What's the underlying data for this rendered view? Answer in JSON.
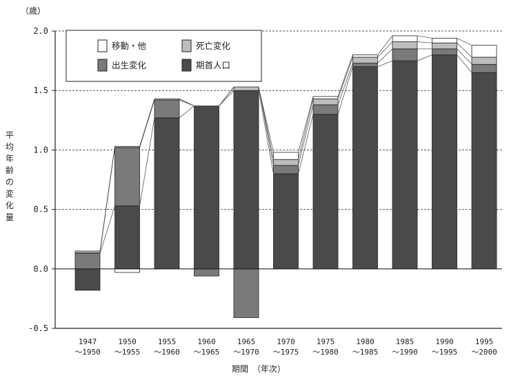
{
  "chart_data": {
    "type": "bar",
    "stacked": true,
    "unit_label": "（歳）",
    "ylabel": "平均年齢の変化量",
    "xlabel": "期間　（年次）",
    "ylim": [
      -0.5,
      2.0
    ],
    "yticks": [
      "2.0",
      "1.5",
      "1.0",
      "0.5",
      "0.0",
      "-0.5"
    ],
    "ytick_values": [
      2.0,
      1.5,
      1.0,
      0.5,
      0.0,
      -0.5
    ],
    "grid": true,
    "legend_position": "top-left",
    "categories": [
      [
        "1947",
        "～1950"
      ],
      [
        "1950",
        "～1955"
      ],
      [
        "1955",
        "～1960"
      ],
      [
        "1960",
        "～1965"
      ],
      [
        "1965",
        "～1970"
      ],
      [
        "1970",
        "～1975"
      ],
      [
        "1975",
        "～1980"
      ],
      [
        "1980",
        "～1985"
      ],
      [
        "1985",
        "～1990"
      ],
      [
        "1990",
        "～1995"
      ],
      [
        "1995",
        "～2000"
      ]
    ],
    "series": [
      {
        "name": "期首人口",
        "color": "#4a4a4a",
        "values": [
          -0.18,
          0.53,
          1.27,
          1.37,
          1.5,
          0.8,
          1.3,
          1.7,
          1.75,
          1.8,
          1.65
        ]
      },
      {
        "name": "出生変化",
        "color": "#7a7a7a",
        "values": [
          0.13,
          0.49,
          0.15,
          -0.06,
          -0.41,
          0.07,
          0.08,
          0.03,
          0.1,
          0.05,
          0.07
        ]
      },
      {
        "name": "死亡変化",
        "color": "#bdbdbd",
        "values": [
          0.01,
          0.01,
          0.01,
          0.0,
          0.03,
          0.05,
          0.05,
          0.05,
          0.06,
          0.05,
          0.06
        ]
      },
      {
        "name": "移動・他",
        "color": "#ffffff",
        "values": [
          0.01,
          -0.03,
          0.0,
          0.0,
          0.0,
          0.06,
          0.02,
          0.02,
          0.05,
          0.04,
          0.1
        ]
      }
    ],
    "legend_order": [
      "移動・他",
      "死亡変化",
      "出生変化",
      "期首人口"
    ],
    "legend_columns": 2
  }
}
